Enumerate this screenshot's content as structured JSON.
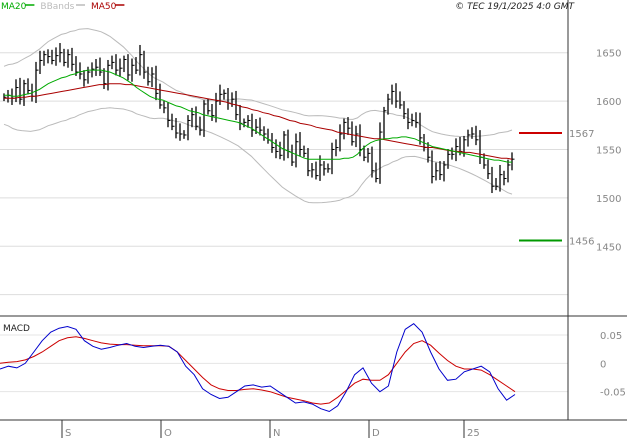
{
  "header": {
    "legend": [
      {
        "label": "MA20",
        "color": "#00aa00"
      },
      {
        "label": "BBands",
        "color": "#bbbbbb"
      },
      {
        "label": "MA50",
        "color": "#aa0000"
      }
    ],
    "copyright": "© TEC 19/1/2025 4:0 GMT"
  },
  "macd_panel": {
    "title": "MACD"
  },
  "chart_data": [
    {
      "type": "candlestick",
      "title": "",
      "x_tick_labels": [
        "S",
        "O",
        "N",
        "D",
        "25"
      ],
      "y_tick_labels": [
        "1650",
        "1600",
        "1550",
        "1500",
        "1450"
      ],
      "ylim": [
        1380,
        1690
      ],
      "grid": true,
      "markers": [
        {
          "label": "1567",
          "value": 1567,
          "color": "#cc0000"
        },
        {
          "label": "1456",
          "value": 1456,
          "color": "#009900"
        }
      ],
      "colors": {
        "bars": "#000000",
        "ma20": "#00aa00",
        "ma50": "#aa0000",
        "bbands": "#bbbbbb"
      },
      "close": [
        1604,
        1606,
        1603,
        1614,
        1602,
        1618,
        1611,
        1605,
        1632,
        1642,
        1648,
        1646,
        1642,
        1647,
        1650,
        1640,
        1648,
        1638,
        1630,
        1628,
        1622,
        1630,
        1633,
        1635,
        1630,
        1618,
        1637,
        1640,
        1632,
        1634,
        1643,
        1627,
        1637,
        1632,
        1648,
        1630,
        1620,
        1628,
        1608,
        1596,
        1593,
        1580,
        1574,
        1567,
        1566,
        1565,
        1580,
        1586,
        1574,
        1570,
        1597,
        1590,
        1585,
        1600,
        1607,
        1608,
        1598,
        1602,
        1586,
        1577,
        1578,
        1580,
        1570,
        1573,
        1570,
        1566,
        1560,
        1552,
        1548,
        1544,
        1565,
        1548,
        1537,
        1558,
        1550,
        1546,
        1528,
        1529,
        1523,
        1534,
        1530,
        1530,
        1550,
        1552,
        1566,
        1578,
        1572,
        1558,
        1566,
        1550,
        1542,
        1546,
        1528,
        1520,
        1568,
        1590,
        1602,
        1610,
        1600,
        1596,
        1587,
        1578,
        1580,
        1578,
        1562,
        1552,
        1542,
        1522,
        1528,
        1524,
        1534,
        1545,
        1545,
        1553,
        1548,
        1560,
        1565,
        1566,
        1560,
        1542,
        1534,
        1525,
        1512,
        1512,
        1524,
        1520,
        1534,
        1540
      ],
      "ma20": [
        1606,
        1606,
        1605,
        1605,
        1606,
        1607,
        1608,
        1610,
        1612,
        1615,
        1618,
        1620,
        1622,
        1624,
        1625,
        1627,
        1628,
        1630,
        1631,
        1632,
        1632,
        1632,
        1632,
        1631,
        1630,
        1628,
        1626,
        1624,
        1621,
        1618,
        1614,
        1611,
        1608,
        1605,
        1603,
        1602,
        1601,
        1599,
        1597,
        1595,
        1594,
        1592,
        1590,
        1589,
        1588,
        1586,
        1585,
        1584,
        1583,
        1582,
        1581,
        1580,
        1579,
        1578,
        1576,
        1574,
        1572,
        1569,
        1566,
        1563,
        1560,
        1557,
        1554,
        1551,
        1549,
        1547,
        1545,
        1543,
        1541,
        1540,
        1540,
        1540,
        1540,
        1540,
        1540,
        1540,
        1540,
        1541,
        1541,
        1542,
        1545,
        1550,
        1554,
        1557,
        1559,
        1560,
        1561,
        1561,
        1562,
        1562,
        1563,
        1563,
        1562,
        1561,
        1559,
        1557,
        1555,
        1553,
        1552,
        1551,
        1550,
        1549,
        1548,
        1547,
        1546,
        1545,
        1544,
        1543,
        1542,
        1541,
        1540,
        1539,
        1539,
        1538,
        1537,
        1537
      ],
      "ma50": [
        1603,
        1603,
        1603,
        1604,
        1604,
        1605,
        1605,
        1606,
        1607,
        1608,
        1609,
        1610,
        1611,
        1612,
        1613,
        1614,
        1615,
        1616,
        1617,
        1617,
        1618,
        1618,
        1618,
        1617,
        1617,
        1616,
        1615,
        1614,
        1613,
        1612,
        1611,
        1610,
        1609,
        1608,
        1607,
        1606,
        1605,
        1604,
        1603,
        1602,
        1601,
        1600,
        1599,
        1597,
        1596,
        1594,
        1593,
        1591,
        1590,
        1588,
        1587,
        1585,
        1584,
        1582,
        1580,
        1579,
        1577,
        1576,
        1575,
        1573,
        1572,
        1571,
        1570,
        1568,
        1567,
        1566,
        1565,
        1564,
        1563,
        1562,
        1561,
        1561,
        1560,
        1559,
        1558,
        1557,
        1556,
        1555,
        1554,
        1553,
        1552,
        1552,
        1551,
        1550,
        1549,
        1548,
        1548,
        1547,
        1547,
        1546,
        1545,
        1544,
        1543,
        1542,
        1541,
        1541,
        1540
      ]
    },
    {
      "type": "line",
      "title": "MACD",
      "y_tick_labels": [
        "0.05",
        "0",
        "-0.05"
      ],
      "ylim": [
        -0.1,
        0.08
      ],
      "colors": {
        "macd": "#0000cc",
        "signal": "#cc0000"
      },
      "macd": [
        -0.01,
        -0.005,
        -0.008,
        0,
        0.02,
        0.04,
        0.055,
        0.062,
        0.065,
        0.06,
        0.04,
        0.03,
        0.025,
        0.028,
        0.032,
        0.035,
        0.03,
        0.028,
        0.03,
        0.032,
        0.03,
        0.02,
        -0.005,
        -0.02,
        -0.045,
        -0.055,
        -0.062,
        -0.06,
        -0.05,
        -0.04,
        -0.038,
        -0.042,
        -0.04,
        -0.05,
        -0.06,
        -0.07,
        -0.068,
        -0.072,
        -0.08,
        -0.085,
        -0.075,
        -0.05,
        -0.02,
        -0.008,
        -0.035,
        -0.05,
        -0.04,
        0.02,
        0.06,
        0.07,
        0.055,
        0.02,
        -0.01,
        -0.03,
        -0.028,
        -0.015,
        -0.01,
        -0.005,
        -0.015,
        -0.045,
        -0.065,
        -0.055
      ],
      "signal": [
        0,
        0.002,
        0.003,
        0.006,
        0.012,
        0.02,
        0.03,
        0.04,
        0.045,
        0.047,
        0.044,
        0.04,
        0.036,
        0.034,
        0.033,
        0.033,
        0.032,
        0.031,
        0.031,
        0.031,
        0.03,
        0.02,
        0.005,
        -0.01,
        -0.025,
        -0.038,
        -0.045,
        -0.048,
        -0.048,
        -0.046,
        -0.045,
        -0.047,
        -0.05,
        -0.055,
        -0.06,
        -0.063,
        -0.066,
        -0.07,
        -0.072,
        -0.07,
        -0.06,
        -0.048,
        -0.035,
        -0.028,
        -0.03,
        -0.03,
        -0.02,
        0,
        0.02,
        0.035,
        0.04,
        0.032,
        0.018,
        0.005,
        -0.005,
        -0.01,
        -0.01,
        -0.012,
        -0.02,
        -0.03,
        -0.04,
        -0.05
      ]
    }
  ]
}
